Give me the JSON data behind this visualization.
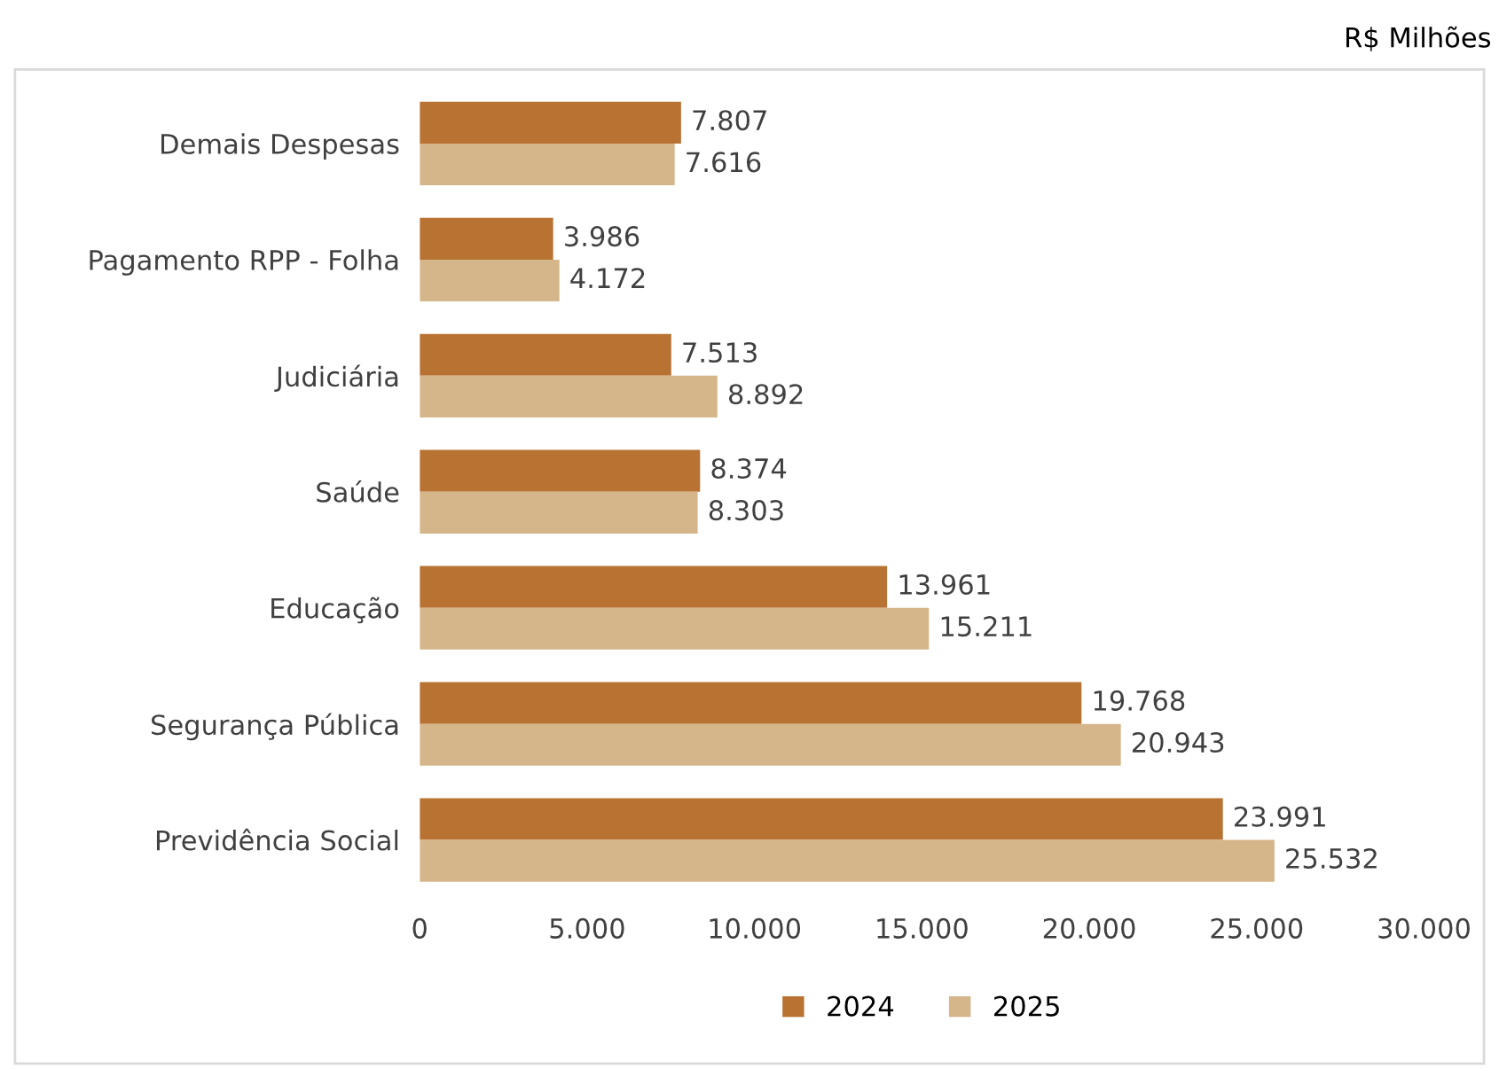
{
  "chart_data": {
    "type": "bar",
    "orientation": "horizontal",
    "categories": [
      "Demais Despesas",
      "Pagamento RPP - Folha",
      "Judiciária",
      "Saúde",
      "Educação",
      "Segurança Pública",
      "Previdência Social"
    ],
    "series": [
      {
        "name": "2024",
        "color": "#b87333",
        "values": [
          7807,
          3986,
          7513,
          8374,
          13961,
          19768,
          23991
        ],
        "value_labels": [
          "7.807",
          "3.986",
          "7.513",
          "8.374",
          "13.961",
          "19.768",
          "23.991"
        ]
      },
      {
        "name": "2025",
        "color": "#d5b68a",
        "values": [
          7616,
          4172,
          8892,
          8303,
          15211,
          20943,
          25532
        ],
        "value_labels": [
          "7.616",
          "4.172",
          "8.892",
          "8.303",
          "15.211",
          "20.943",
          "25.532"
        ]
      }
    ],
    "xlim": [
      0,
      30000
    ],
    "xticks": [
      0,
      {
        "value": 5000,
        "label": "5.000"
      },
      {
        "value": 10000,
        "label": "10.000"
      },
      {
        "value": 15000,
        "label": "15.000"
      },
      {
        "value": 20000,
        "label": "20.000"
      },
      {
        "value": 25000,
        "label": "25.000"
      },
      {
        "value": 30000,
        "label": "30.000"
      }
    ],
    "annotations": [
      "R$ Milhões"
    ],
    "legend": "bottom",
    "grid": false
  }
}
